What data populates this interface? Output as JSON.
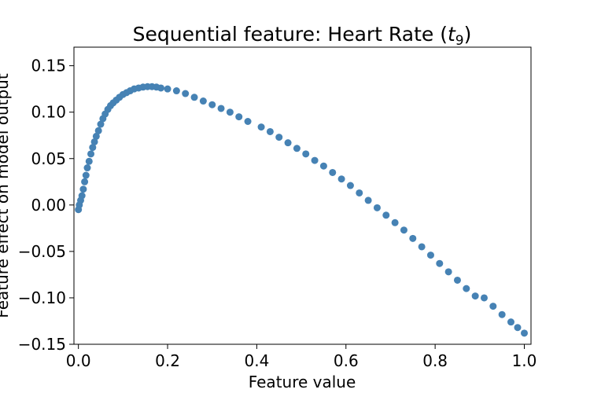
{
  "chart_data": {
    "type": "scatter",
    "title": "Sequential feature: Heart Rate (",
    "title_symbol": "t",
    "title_subscript": "9",
    "title_close": ")",
    "xlabel": "Feature value",
    "ylabel": "Feature effect on model output",
    "xlim": [
      -0.01,
      1.015
    ],
    "ylim": [
      -0.15,
      0.17
    ],
    "xticks": [
      0.0,
      0.2,
      0.4,
      0.6,
      0.8,
      1.0
    ],
    "xtick_labels": [
      "0.0",
      "0.2",
      "0.4",
      "0.6",
      "0.8",
      "1.0"
    ],
    "yticks": [
      -0.15,
      -0.1,
      -0.05,
      0.0,
      0.05,
      0.1,
      0.15
    ],
    "ytick_labels": [
      "−0.15",
      "−0.10",
      "−0.05",
      "0.00",
      "0.05",
      "0.10",
      "0.15"
    ],
    "grid": false,
    "marker_color": "#4682b4",
    "points": [
      [
        0.0,
        -0.005
      ],
      [
        0.002,
        0.0
      ],
      [
        0.005,
        0.005
      ],
      [
        0.008,
        0.01
      ],
      [
        0.011,
        0.017
      ],
      [
        0.014,
        0.025
      ],
      [
        0.017,
        0.032
      ],
      [
        0.02,
        0.04
      ],
      [
        0.024,
        0.047
      ],
      [
        0.028,
        0.055
      ],
      [
        0.032,
        0.062
      ],
      [
        0.036,
        0.068
      ],
      [
        0.04,
        0.074
      ],
      [
        0.045,
        0.08
      ],
      [
        0.05,
        0.087
      ],
      [
        0.055,
        0.093
      ],
      [
        0.06,
        0.098
      ],
      [
        0.066,
        0.103
      ],
      [
        0.072,
        0.107
      ],
      [
        0.078,
        0.11
      ],
      [
        0.085,
        0.113
      ],
      [
        0.092,
        0.116
      ],
      [
        0.1,
        0.119
      ],
      [
        0.108,
        0.121
      ],
      [
        0.116,
        0.123
      ],
      [
        0.125,
        0.125
      ],
      [
        0.135,
        0.126
      ],
      [
        0.145,
        0.127
      ],
      [
        0.155,
        0.1275
      ],
      [
        0.165,
        0.1275
      ],
      [
        0.175,
        0.127
      ],
      [
        0.185,
        0.126
      ],
      [
        0.2,
        0.125
      ],
      [
        0.22,
        0.123
      ],
      [
        0.24,
        0.12
      ],
      [
        0.26,
        0.116
      ],
      [
        0.28,
        0.112
      ],
      [
        0.3,
        0.108
      ],
      [
        0.32,
        0.104
      ],
      [
        0.34,
        0.1
      ],
      [
        0.36,
        0.095
      ],
      [
        0.38,
        0.09
      ],
      [
        0.41,
        0.084
      ],
      [
        0.43,
        0.079
      ],
      [
        0.45,
        0.073
      ],
      [
        0.47,
        0.067
      ],
      [
        0.49,
        0.061
      ],
      [
        0.51,
        0.055
      ],
      [
        0.53,
        0.048
      ],
      [
        0.55,
        0.042
      ],
      [
        0.57,
        0.035
      ],
      [
        0.59,
        0.028
      ],
      [
        0.61,
        0.021
      ],
      [
        0.63,
        0.013
      ],
      [
        0.65,
        0.005
      ],
      [
        0.67,
        -0.003
      ],
      [
        0.69,
        -0.011
      ],
      [
        0.71,
        -0.019
      ],
      [
        0.73,
        -0.027
      ],
      [
        0.75,
        -0.036
      ],
      [
        0.77,
        -0.045
      ],
      [
        0.79,
        -0.054
      ],
      [
        0.81,
        -0.063
      ],
      [
        0.83,
        -0.072
      ],
      [
        0.85,
        -0.081
      ],
      [
        0.87,
        -0.09
      ],
      [
        0.89,
        -0.098
      ],
      [
        0.91,
        -0.1
      ],
      [
        0.93,
        -0.109
      ],
      [
        0.95,
        -0.118
      ],
      [
        0.97,
        -0.126
      ],
      [
        0.985,
        -0.132
      ],
      [
        1.0,
        -0.138
      ]
    ]
  }
}
